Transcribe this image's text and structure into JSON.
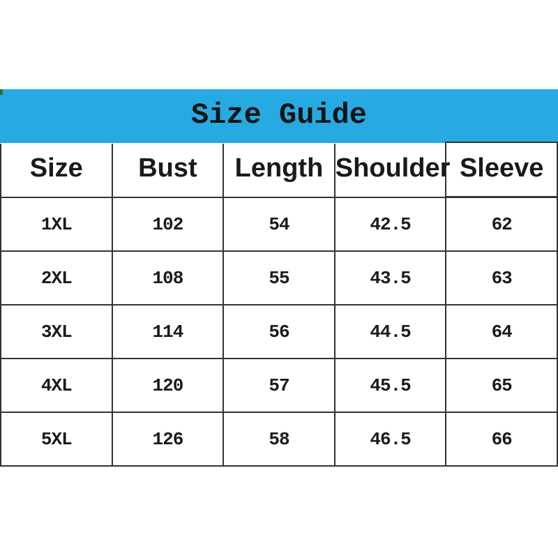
{
  "banner": {
    "title": "Size Guide",
    "background_color": "#27a9e1",
    "artifact_color": "#2f6b2f"
  },
  "colors": {
    "accent": "#27a9e1",
    "table_border": "#333333",
    "text": "#1a1a1a",
    "page_background": "#ffffff"
  },
  "chart_data": {
    "type": "table",
    "title": "Size Guide",
    "columns": [
      "Size",
      "Bust",
      "Length",
      "Shoulder",
      "Sleeve"
    ],
    "rows": [
      [
        "1XL",
        "102",
        "54",
        "42.5",
        "62"
      ],
      [
        "2XL",
        "108",
        "55",
        "43.5",
        "63"
      ],
      [
        "3XL",
        "114",
        "56",
        "44.5",
        "64"
      ],
      [
        "4XL",
        "120",
        "57",
        "45.5",
        "65"
      ],
      [
        "5XL",
        "126",
        "58",
        "46.5",
        "66"
      ]
    ]
  }
}
